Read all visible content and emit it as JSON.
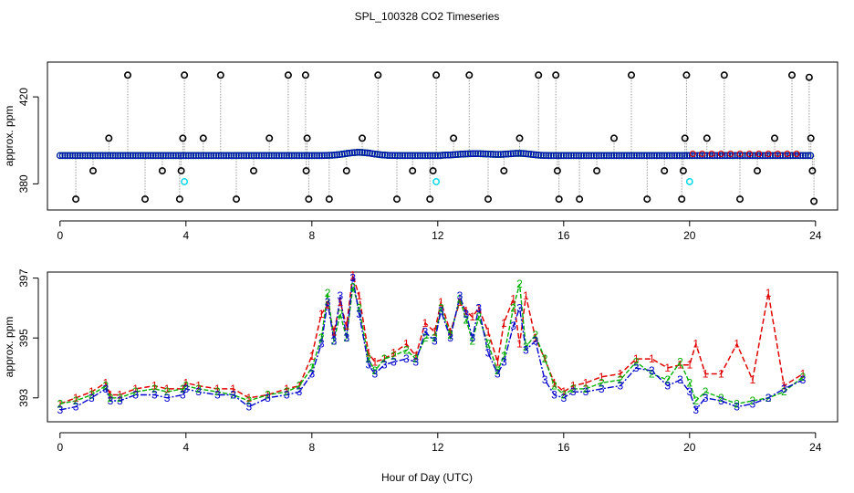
{
  "title": "SPL_100328  CO2 Timeseries",
  "shared_xlabel": "Hour of Day (UTC)",
  "colors": {
    "axis": "#000000",
    "series1": "#e00000",
    "series2": "#00b000",
    "series3": "#0000cc",
    "highlight": "#00d8e8",
    "connector": "#9a9a9a"
  },
  "chart_data": [
    {
      "type": "scatter",
      "ylabel": "approx. ppm",
      "xlim": [
        -0.4,
        24.7
      ],
      "ylim": [
        368,
        436
      ],
      "xticks": [
        0,
        4,
        8,
        12,
        16,
        20,
        24
      ],
      "yticks": [
        380,
        420
      ],
      "xtick_labels": [
        "0",
        "4",
        "8",
        "12",
        "16",
        "20",
        "24"
      ],
      "ytick_labels": [
        "380",
        "420"
      ],
      "baseline_ppm": 393,
      "high_outlier_ppm": 430,
      "low_outlier_ppm": 373,
      "mid_high_ppm": 401,
      "mid_low_ppm": 386,
      "outliers": [
        {
          "x": 0.5,
          "y": 373
        },
        {
          "x": 1.05,
          "y": 386
        },
        {
          "x": 1.55,
          "y": 401
        },
        {
          "x": 2.15,
          "y": 430
        },
        {
          "x": 2.7,
          "y": 373
        },
        {
          "x": 3.25,
          "y": 386
        },
        {
          "x": 3.8,
          "y": 373
        },
        {
          "x": 3.85,
          "y": 386
        },
        {
          "x": 3.9,
          "y": 401
        },
        {
          "x": 3.95,
          "y": 430
        },
        {
          "x": 4.55,
          "y": 401
        },
        {
          "x": 5.1,
          "y": 430
        },
        {
          "x": 5.6,
          "y": 373
        },
        {
          "x": 6.15,
          "y": 386
        },
        {
          "x": 6.65,
          "y": 401
        },
        {
          "x": 7.25,
          "y": 430
        },
        {
          "x": 7.8,
          "y": 430
        },
        {
          "x": 7.85,
          "y": 401
        },
        {
          "x": 7.82,
          "y": 386
        },
        {
          "x": 7.9,
          "y": 373
        },
        {
          "x": 8.55,
          "y": 373
        },
        {
          "x": 9.1,
          "y": 386
        },
        {
          "x": 9.6,
          "y": 401
        },
        {
          "x": 10.1,
          "y": 430
        },
        {
          "x": 10.7,
          "y": 373
        },
        {
          "x": 11.2,
          "y": 386
        },
        {
          "x": 11.75,
          "y": 373
        },
        {
          "x": 11.85,
          "y": 386
        },
        {
          "x": 11.95,
          "y": 430
        },
        {
          "x": 12.5,
          "y": 401
        },
        {
          "x": 13.0,
          "y": 430
        },
        {
          "x": 13.6,
          "y": 373
        },
        {
          "x": 14.1,
          "y": 386
        },
        {
          "x": 14.6,
          "y": 401
        },
        {
          "x": 15.2,
          "y": 430
        },
        {
          "x": 15.75,
          "y": 430
        },
        {
          "x": 15.8,
          "y": 386
        },
        {
          "x": 15.85,
          "y": 373
        },
        {
          "x": 16.5,
          "y": 373
        },
        {
          "x": 17.05,
          "y": 386
        },
        {
          "x": 17.6,
          "y": 401
        },
        {
          "x": 18.15,
          "y": 430
        },
        {
          "x": 18.65,
          "y": 373
        },
        {
          "x": 19.2,
          "y": 386
        },
        {
          "x": 19.75,
          "y": 373
        },
        {
          "x": 19.8,
          "y": 386
        },
        {
          "x": 19.85,
          "y": 401
        },
        {
          "x": 19.9,
          "y": 430
        },
        {
          "x": 20.55,
          "y": 401
        },
        {
          "x": 21.1,
          "y": 430
        },
        {
          "x": 21.6,
          "y": 373
        },
        {
          "x": 22.15,
          "y": 386
        },
        {
          "x": 22.7,
          "y": 401
        },
        {
          "x": 23.25,
          "y": 430
        },
        {
          "x": 23.8,
          "y": 429
        },
        {
          "x": 23.85,
          "y": 401
        },
        {
          "x": 23.9,
          "y": 386
        },
        {
          "x": 23.95,
          "y": 372
        }
      ],
      "highlighted_points": [
        {
          "x": 3.95,
          "y": 381
        },
        {
          "x": 11.95,
          "y": 381
        },
        {
          "x": 20.0,
          "y": 381
        }
      ]
    },
    {
      "type": "line",
      "ylabel": "approx. ppm",
      "xlim": [
        -0.4,
        24.7
      ],
      "ylim": [
        392.2,
        397.2
      ],
      "xticks": [
        0,
        4,
        8,
        12,
        16,
        20,
        24
      ],
      "yticks": [
        393,
        395,
        397
      ],
      "xtick_labels": [
        "0",
        "4",
        "8",
        "12",
        "16",
        "20",
        "24"
      ],
      "ytick_labels": [
        "393",
        "395",
        "397"
      ],
      "x": [
        0.0,
        0.5,
        1.0,
        1.45,
        1.6,
        1.9,
        2.4,
        3.0,
        3.4,
        3.9,
        4.0,
        4.4,
        5.0,
        5.5,
        6.0,
        6.6,
        7.2,
        7.6,
        8.0,
        8.3,
        8.5,
        8.7,
        8.9,
        9.1,
        9.3,
        9.5,
        9.8,
        10.0,
        10.3,
        10.6,
        11.0,
        11.3,
        11.6,
        11.9,
        12.1,
        12.4,
        12.7,
        12.9,
        13.1,
        13.3,
        13.6,
        13.9,
        14.1,
        14.4,
        14.6,
        14.8,
        15.1,
        15.4,
        15.7,
        16.0,
        16.3,
        16.7,
        17.2,
        17.8,
        18.3,
        18.8,
        19.3,
        19.7,
        20.0,
        20.2,
        20.5,
        21.0,
        21.5,
        22.0,
        22.5,
        23.0,
        23.6
      ],
      "series": [
        {
          "name": "1",
          "values": [
            392.8,
            393.0,
            393.2,
            393.5,
            393.1,
            393.1,
            393.3,
            393.4,
            393.3,
            393.3,
            393.5,
            393.4,
            393.3,
            393.3,
            393.0,
            393.1,
            393.3,
            393.4,
            394.4,
            395.8,
            396.1,
            395.2,
            396.2,
            395.4,
            397.1,
            396.4,
            394.5,
            394.2,
            394.3,
            394.5,
            394.8,
            394.4,
            395.5,
            395.2,
            396.2,
            395.2,
            396.2,
            395.9,
            395.7,
            396.0,
            395.2,
            394.2,
            395.5,
            396.3,
            394.8,
            396.4,
            395.0,
            394.3,
            393.5,
            393.2,
            393.4,
            393.5,
            393.7,
            393.8,
            394.3,
            394.3,
            394.0,
            394.1,
            394.1,
            394.8,
            393.8,
            393.8,
            394.8,
            393.6,
            396.5,
            393.4,
            393.8
          ]
        },
        {
          "name": "2",
          "values": [
            392.8,
            392.9,
            393.1,
            393.4,
            393.0,
            393.0,
            393.2,
            393.3,
            393.2,
            393.3,
            393.4,
            393.3,
            393.2,
            393.1,
            392.9,
            393.1,
            393.2,
            393.4,
            394.0,
            395.0,
            396.5,
            394.9,
            395.8,
            395.0,
            396.7,
            396.0,
            394.3,
            393.9,
            394.3,
            394.4,
            394.6,
            394.3,
            395.0,
            395.0,
            396.0,
            395.1,
            396.3,
            395.6,
            394.9,
            395.7,
            394.8,
            393.9,
            394.4,
            396.0,
            396.8,
            394.7,
            395.1,
            394.3,
            393.4,
            393.1,
            393.3,
            393.3,
            393.5,
            393.6,
            394.2,
            393.8,
            393.6,
            394.2,
            393.5,
            392.9,
            393.2,
            393.0,
            392.8,
            392.9,
            393.0,
            393.2,
            393.7
          ]
        },
        {
          "name": "3",
          "values": [
            392.6,
            392.7,
            393.0,
            393.3,
            392.9,
            392.9,
            393.1,
            393.1,
            393.0,
            393.1,
            393.3,
            393.2,
            393.1,
            393.1,
            392.7,
            393.0,
            393.1,
            393.2,
            393.8,
            394.8,
            396.2,
            394.9,
            396.4,
            395.0,
            397.0,
            395.8,
            394.1,
            393.8,
            394.1,
            394.2,
            394.3,
            394.2,
            395.2,
            394.9,
            395.9,
            395.0,
            396.4,
            395.8,
            395.0,
            396.0,
            394.5,
            393.8,
            394.2,
            395.4,
            396.0,
            394.6,
            394.9,
            393.6,
            393.1,
            393.0,
            393.2,
            393.2,
            393.3,
            393.4,
            394.0,
            393.9,
            393.4,
            393.6,
            393.2,
            392.6,
            393.0,
            392.9,
            392.7,
            392.8,
            393.0,
            393.3,
            393.6
          ]
        }
      ]
    }
  ]
}
